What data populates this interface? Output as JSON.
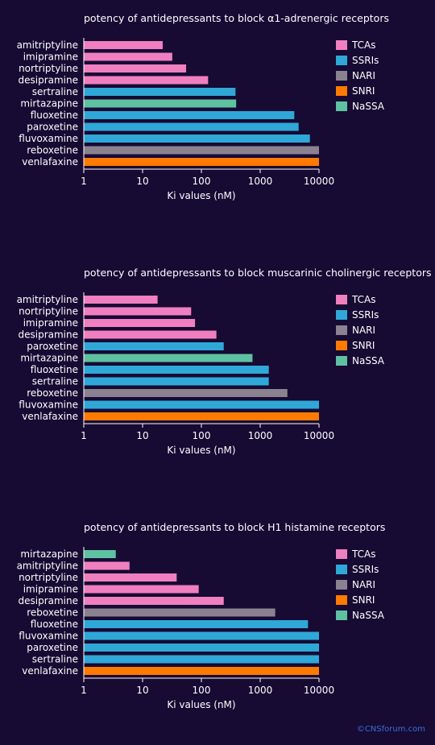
{
  "colors": {
    "background": "#170a33",
    "TCAs": "#f07fc0",
    "SSRIs": "#2fa8d8",
    "NARI": "#8a8290",
    "SNRI": "#ff7a00",
    "NaSSA": "#5ec2a2"
  },
  "legend": [
    {
      "key": "TCAs",
      "label": "TCAs"
    },
    {
      "key": "SSRIs",
      "label": "SSRIs"
    },
    {
      "key": "NARI",
      "label": "NARI"
    },
    {
      "key": "SNRI",
      "label": "SNRI"
    },
    {
      "key": "NaSSA",
      "label": "NaSSA"
    }
  ],
  "copyright": "©CNSforum.com",
  "chart_data": [
    {
      "type": "bar",
      "orientation": "horizontal",
      "title": "potency of antidepressants to block α1-adrenergic receptors",
      "xlabel": "Ki values (nM)",
      "xscale": "log",
      "xlim": [
        1,
        10000
      ],
      "xticks": [
        "1",
        "10",
        "100",
        "1000",
        "10000"
      ],
      "legend_position": "top-right",
      "categories": [
        "amitriptyline",
        "imipramine",
        "nortriptyline",
        "desipramine",
        "sertraline",
        "mirtazapine",
        "fluoxetine",
        "paroxetine",
        "fluvoxamine",
        "reboxetine",
        "venlafaxine"
      ],
      "values": [
        22,
        32,
        55,
        130,
        380,
        390,
        3800,
        4500,
        7000,
        10000,
        10000
      ],
      "classes": [
        "TCAs",
        "TCAs",
        "TCAs",
        "TCAs",
        "SSRIs",
        "NaSSA",
        "SSRIs",
        "SSRIs",
        "SSRIs",
        "NARI",
        "SNRI"
      ]
    },
    {
      "type": "bar",
      "orientation": "horizontal",
      "title": "potency of antidepressants to block muscarinic cholinergic receptors",
      "xlabel": "Ki values (nM)",
      "xscale": "log",
      "xlim": [
        1,
        10000
      ],
      "xticks": [
        "1",
        "10",
        "100",
        "1000",
        "10000"
      ],
      "legend_position": "top-right",
      "categories": [
        "amitriptyline",
        "nortriptyline",
        "imipramine",
        "desipramine",
        "paroxetine",
        "mirtazapine",
        "fluoxetine",
        "sertraline",
        "reboxetine",
        "fluvoxamine",
        "venlafaxine"
      ],
      "values": [
        18,
        67,
        78,
        180,
        240,
        740,
        1400,
        1400,
        2900,
        10000,
        10000
      ],
      "classes": [
        "TCAs",
        "TCAs",
        "TCAs",
        "TCAs",
        "SSRIs",
        "NaSSA",
        "SSRIs",
        "SSRIs",
        "NARI",
        "SSRIs",
        "SNRI"
      ]
    },
    {
      "type": "bar",
      "orientation": "horizontal",
      "title": "potency of antidepressants to block H1 histamine receptors",
      "xlabel": "Ki values (nM)",
      "xscale": "log",
      "xlim": [
        1,
        10000
      ],
      "xticks": [
        "1",
        "10",
        "100",
        "1000",
        "10000"
      ],
      "legend_position": "top-right",
      "categories": [
        "mirtazapine",
        "amitriptyline",
        "nortriptyline",
        "imipramine",
        "desipramine",
        "reboxetine",
        "fluoxetine",
        "fluvoxamine",
        "paroxetine",
        "sertraline",
        "venlafaxine"
      ],
      "values": [
        3.5,
        6,
        38,
        90,
        240,
        1800,
        6500,
        10000,
        10000,
        10000,
        10000
      ],
      "classes": [
        "NaSSA",
        "TCAs",
        "TCAs",
        "TCAs",
        "TCAs",
        "NARI",
        "SSRIs",
        "SSRIs",
        "SSRIs",
        "SSRIs",
        "SNRI"
      ]
    }
  ]
}
